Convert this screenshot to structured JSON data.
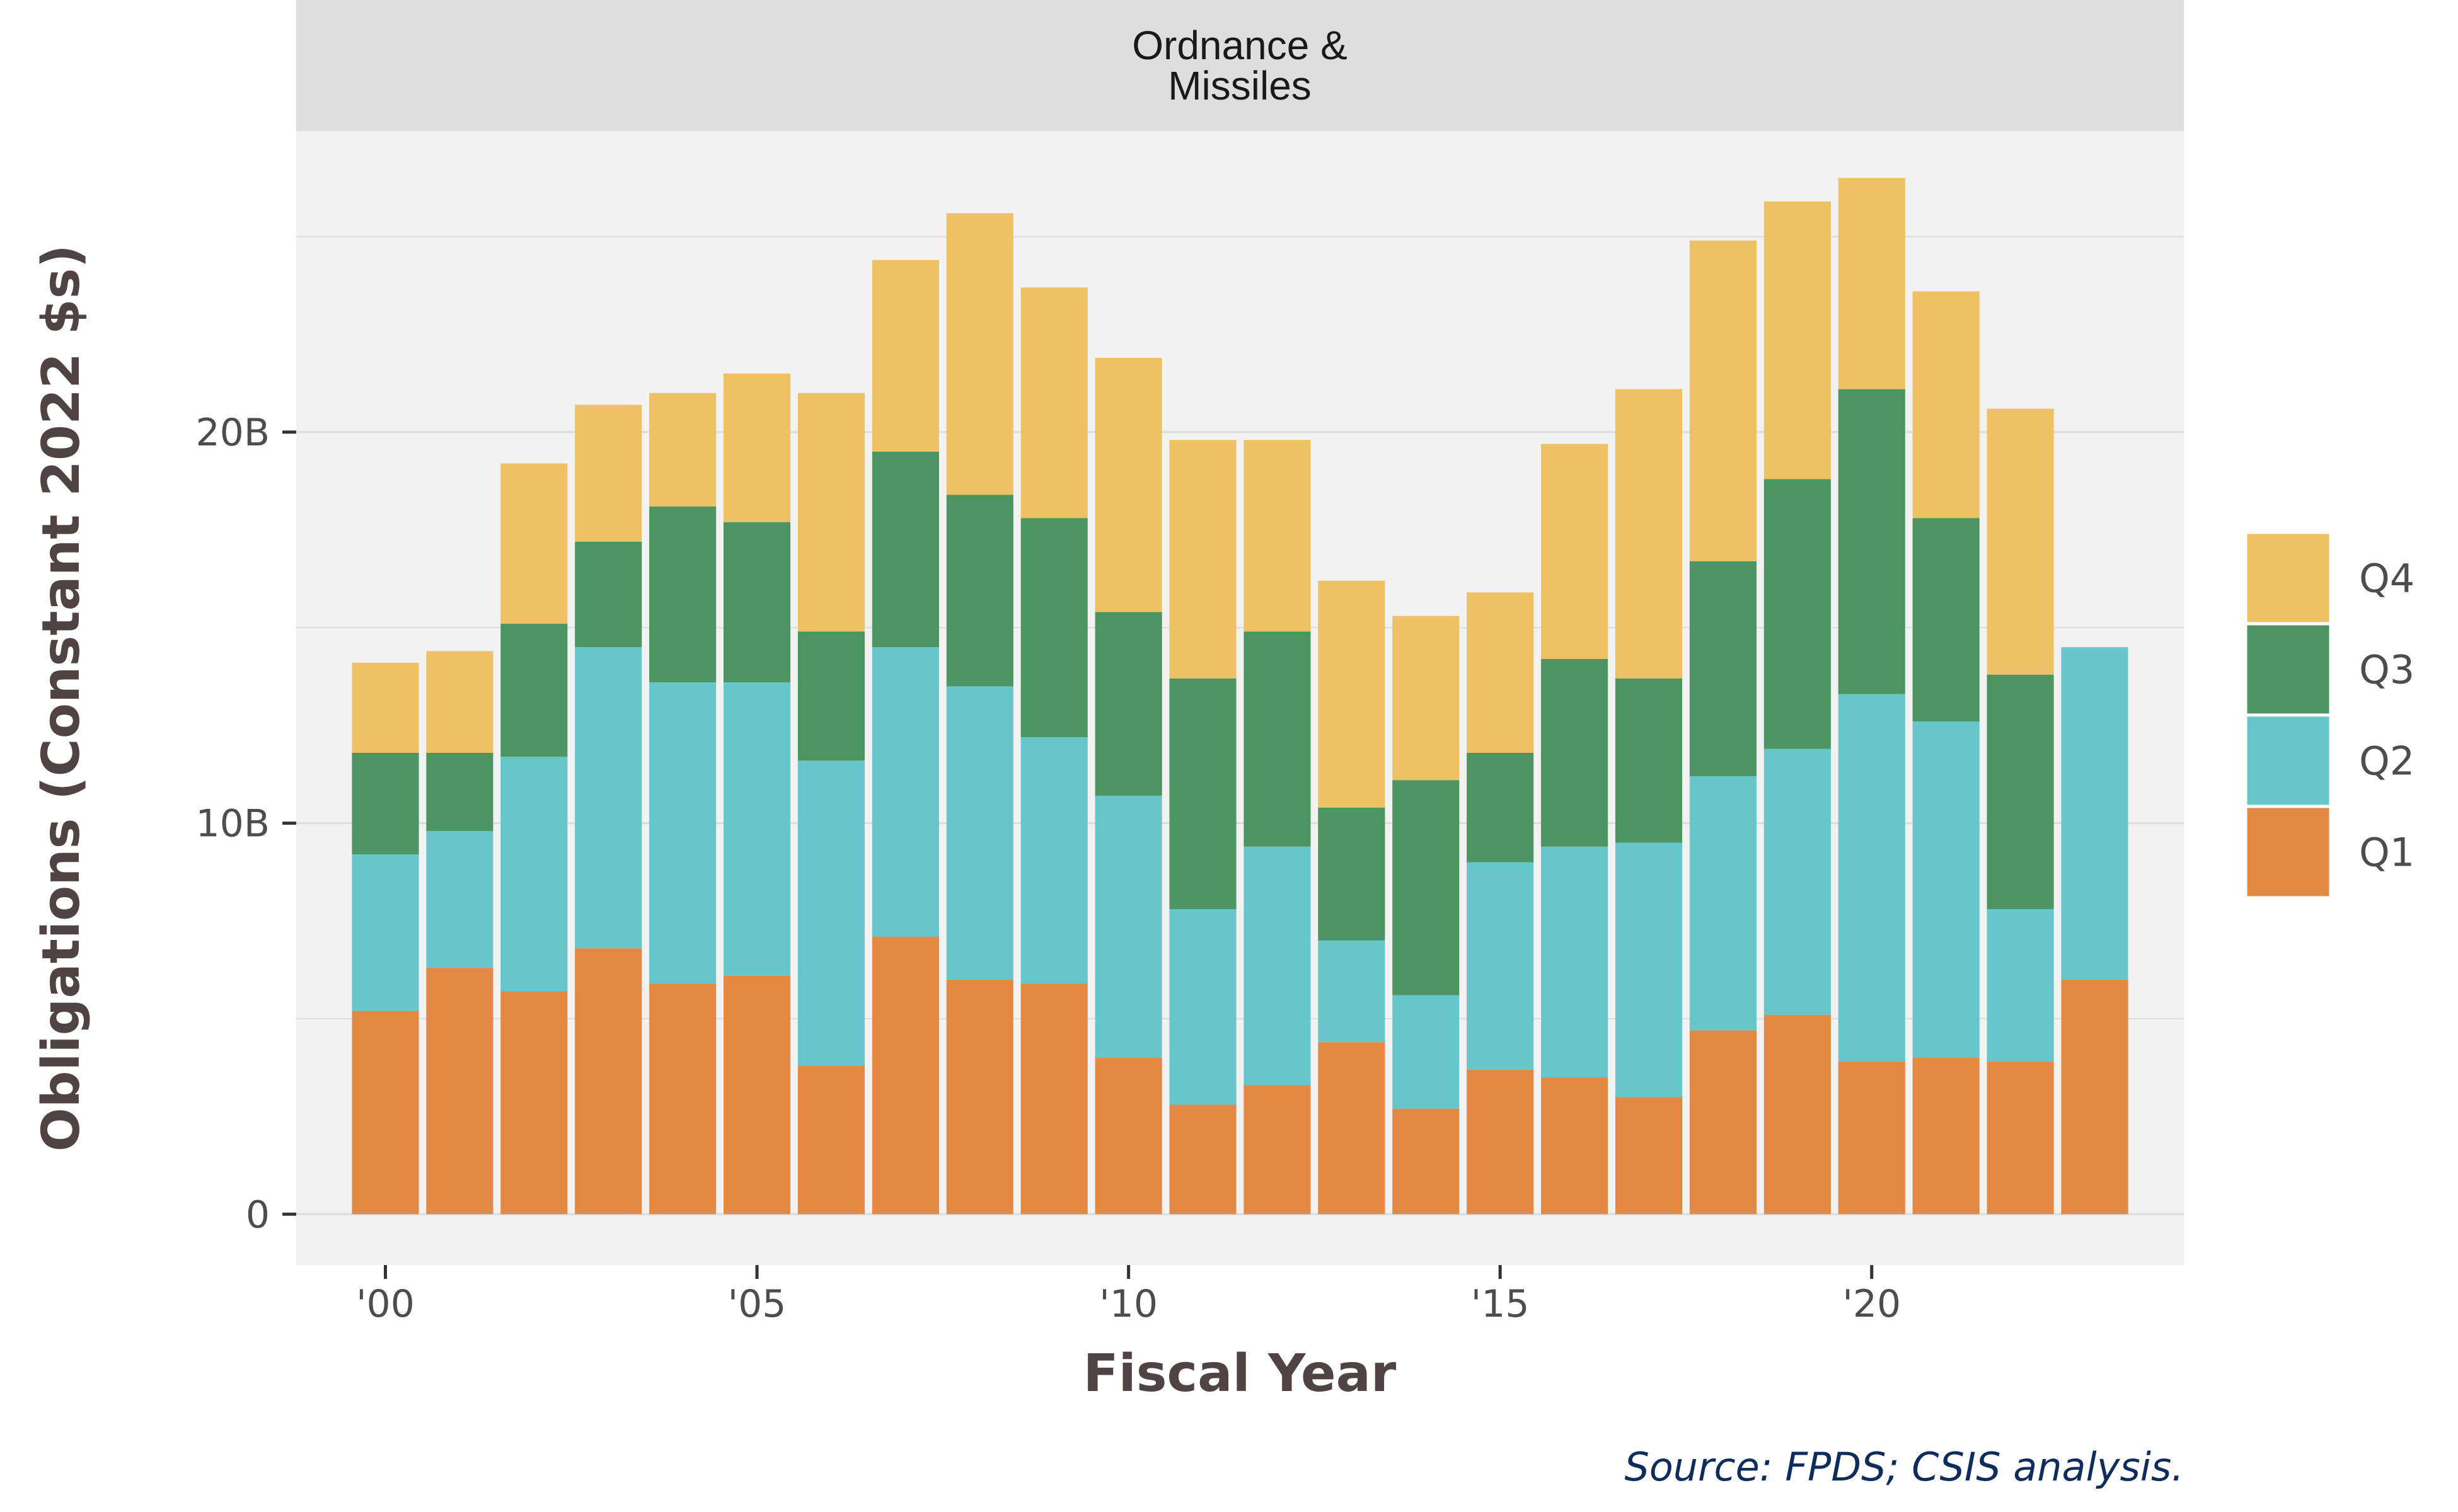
{
  "chart_data": {
    "type": "bar",
    "stacked": true,
    "facet_title": [
      "Ordnance &",
      "Missiles"
    ],
    "xlabel": "Fiscal Year",
    "ylabel": "Obligations (Constant 2022 $s)",
    "caption": "Source: FPDS; CSIS analysis.",
    "x": [
      2000,
      2001,
      2002,
      2003,
      2004,
      2005,
      2006,
      2007,
      2008,
      2009,
      2010,
      2011,
      2012,
      2013,
      2014,
      2015,
      2016,
      2017,
      2018,
      2019,
      2020,
      2021,
      2022,
      2023
    ],
    "x_ticks": [
      {
        "value": 2000,
        "label": "'00"
      },
      {
        "value": 2005,
        "label": "'05"
      },
      {
        "value": 2010,
        "label": "'10"
      },
      {
        "value": 2015,
        "label": "'15"
      },
      {
        "value": 2020,
        "label": "'20"
      }
    ],
    "y_ticks": [
      {
        "value": 0,
        "label": "0"
      },
      {
        "value": 10,
        "label": "10B"
      },
      {
        "value": 20,
        "label": "20B"
      }
    ],
    "y_unit": "billions",
    "ylim": [
      -1.3,
      27.7
    ],
    "grid": true,
    "legend_position": "right",
    "legend_order": [
      "Q4",
      "Q3",
      "Q2",
      "Q1"
    ],
    "series": [
      {
        "name": "Q1",
        "color": "#e38944",
        "values": [
          5.2,
          6.3,
          5.7,
          6.8,
          5.9,
          6.1,
          3.8,
          7.1,
          6.0,
          5.9,
          4.0,
          2.8,
          3.3,
          4.4,
          2.7,
          3.7,
          3.5,
          3.0,
          4.7,
          5.1,
          3.9,
          4.0,
          3.9,
          6.0
        ]
      },
      {
        "name": "Q2",
        "color": "#67c6ca",
        "values": [
          4.0,
          3.5,
          6.0,
          7.7,
          7.7,
          7.5,
          7.8,
          7.4,
          7.5,
          6.3,
          6.7,
          5.0,
          6.1,
          2.6,
          2.9,
          5.3,
          5.9,
          6.5,
          6.5,
          6.8,
          9.4,
          8.6,
          3.9,
          8.5
        ]
      },
      {
        "name": "Q3",
        "color": "#4c9462",
        "values": [
          2.6,
          2.0,
          3.4,
          2.7,
          4.5,
          4.1,
          3.3,
          5.0,
          4.9,
          5.6,
          4.7,
          5.9,
          5.5,
          3.4,
          5.5,
          2.8,
          4.8,
          4.2,
          5.5,
          6.9,
          7.8,
          5.2,
          6.0,
          0.0
        ]
      },
      {
        "name": "Q4",
        "color": "#eec264",
        "values": [
          2.3,
          2.6,
          4.1,
          3.5,
          2.9,
          3.8,
          6.1,
          4.9,
          7.2,
          5.9,
          6.5,
          6.1,
          4.9,
          5.8,
          4.2,
          4.1,
          5.5,
          7.4,
          8.2,
          7.1,
          5.4,
          5.8,
          6.8,
          0.0
        ]
      }
    ]
  }
}
